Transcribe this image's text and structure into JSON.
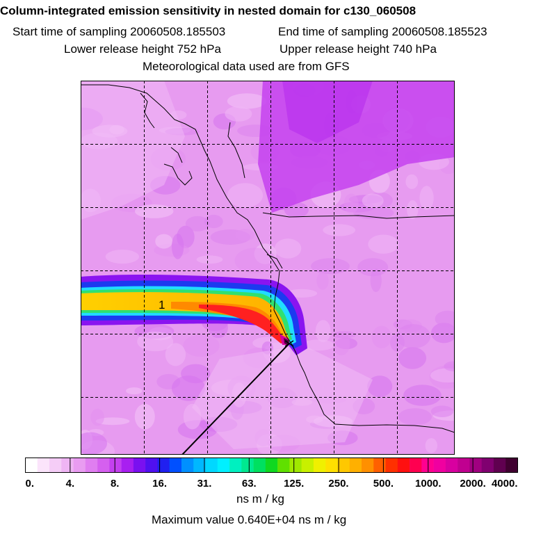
{
  "header": {
    "title": "Column-integrated emission sensitivity in nested domain for c130_060508",
    "start_label": "Start time of sampling",
    "start_value": "20060508.185503",
    "end_label": "End time of sampling",
    "end_value": "20060508.185523",
    "lower_label": "Lower release height",
    "lower_value": "752 hPa",
    "upper_label": "Upper release height",
    "upper_value": "740 hPa",
    "met_text": "Meteorological data used are from GFS"
  },
  "map": {
    "plume_label": "1"
  },
  "colors": {
    "background": "#e79bf0",
    "plume_core": "#ffd000",
    "plume_center": "#ff2a1a",
    "plume_edge": "#1ad8ff"
  },
  "chart_data": {
    "type": "heatmap",
    "title": "Column-integrated emission sensitivity in nested domain for c130_060508",
    "colorbar": {
      "units": "ns m / kg",
      "tick_labels": [
        "0.",
        "4.",
        "8.",
        "16.",
        "31.",
        "63.",
        "125.",
        "250.",
        "500.",
        "1000.",
        "2000.",
        "4000."
      ],
      "colors": [
        "#ffffff",
        "#fbe4fb",
        "#f5cdf7",
        "#efb5f4",
        "#e99cf1",
        "#e07ef0",
        "#d560ef",
        "#c440ef",
        "#a81ff0",
        "#7a10f0",
        "#5010f0",
        "#2020f0",
        "#0050ff",
        "#0090ff",
        "#00b8ff",
        "#00d8ff",
        "#00f0ff",
        "#00f0c0",
        "#00e890",
        "#00e060",
        "#10d820",
        "#60e000",
        "#a0e800",
        "#c8f000",
        "#f0f000",
        "#ffe000",
        "#ffc800",
        "#ffb000",
        "#ff9000",
        "#ff6000",
        "#ff3000",
        "#ff1010",
        "#ff0050",
        "#ff0090",
        "#f000a0",
        "#d800a0",
        "#c00090",
        "#a00080",
        "#800070",
        "#600050",
        "#400030"
      ]
    },
    "max_label": "Maximum value",
    "max_value": "0.640E+04 ns m / kg"
  }
}
